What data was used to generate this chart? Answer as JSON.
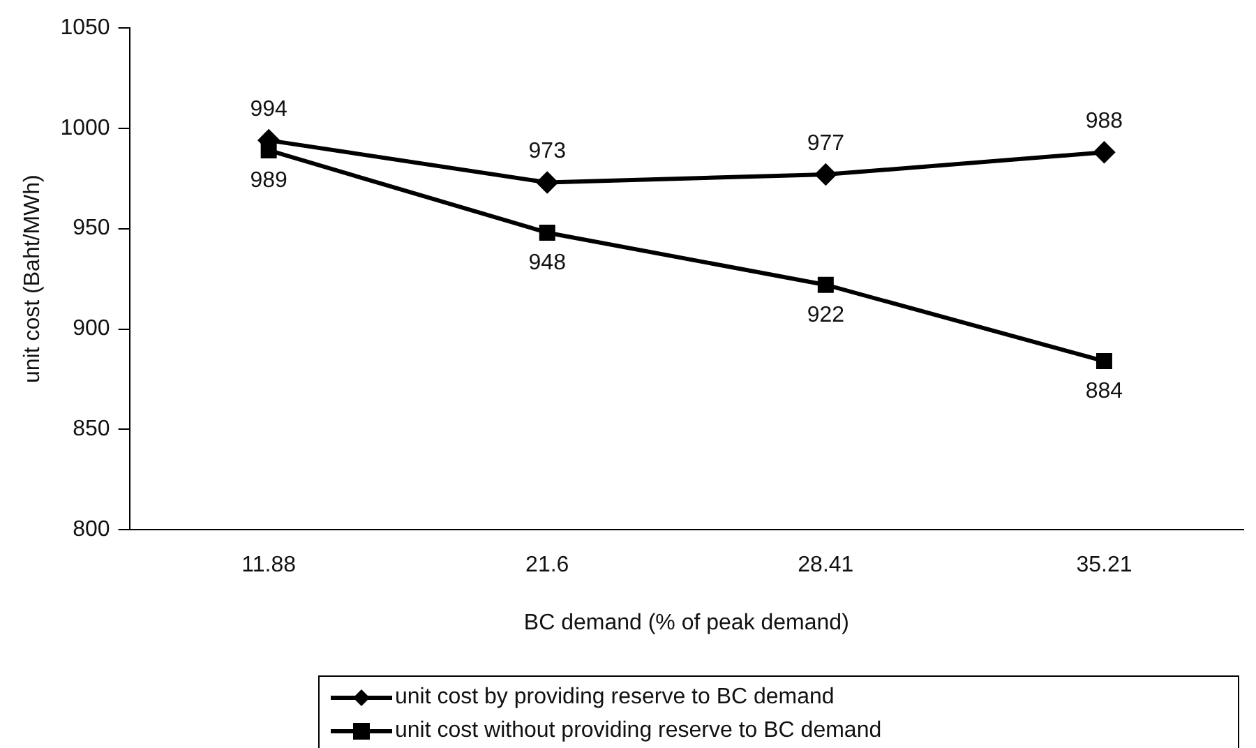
{
  "chart_data": {
    "type": "line",
    "xlabel": "BC demand (% of peak demand)",
    "ylabel": "unit cost (Baht/MWh)",
    "categories": [
      "11.88",
      "21.6",
      "28.41",
      "35.21"
    ],
    "series": [
      {
        "name": "unit cost by providing reserve to BC demand",
        "color": "#000000",
        "marker": "diamond",
        "values": [
          994,
          973,
          977,
          988
        ]
      },
      {
        "name": "unit cost without providing reserve to BC demand",
        "color": "#000000",
        "marker": "square",
        "values": [
          989,
          948,
          922,
          884
        ]
      }
    ],
    "ylim": [
      800,
      1050
    ],
    "yticks": [
      800,
      850,
      900,
      950,
      1000,
      1050
    ],
    "grid": false,
    "legend": "bottom",
    "data_labels": true,
    "line_style": "solid"
  }
}
